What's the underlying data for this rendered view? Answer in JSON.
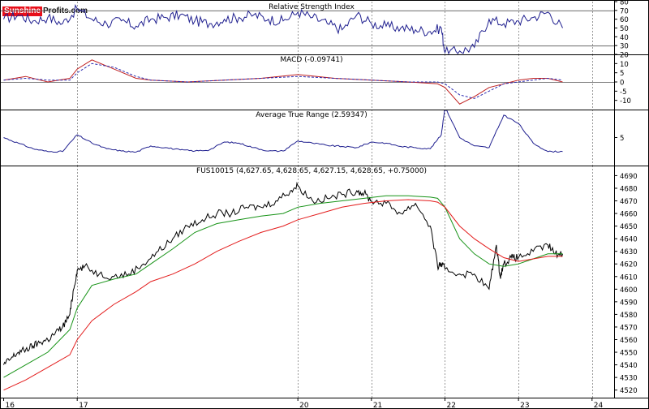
{
  "brand": {
    "part1": "Sunshine",
    "part2": "Profits.com"
  },
  "colors": {
    "price": "#000000",
    "indicator": "#1f1f8f",
    "ma_fast": "#179317",
    "ma_slow": "#e31c1c",
    "grid": "#9a9a9a",
    "axis": "#000000"
  },
  "chart_data": [
    {
      "type": "line",
      "title": "Relative Strength Index",
      "ylim": [
        20,
        80
      ],
      "yticks": [
        "80",
        "70",
        "60",
        "50",
        "40",
        "30",
        "20"
      ],
      "reference_lines": [
        70,
        30
      ],
      "series": [
        {
          "x": [
            16.0,
            16.2,
            16.4,
            16.6,
            16.8,
            17.0,
            17.2,
            17.4,
            17.6,
            17.8,
            18.0,
            18.2,
            18.4,
            18.6,
            18.8,
            19.0,
            19.2,
            19.4,
            19.6,
            19.8,
            20.0,
            20.2,
            20.4,
            20.6,
            20.8,
            21.0,
            21.2,
            21.4,
            21.6,
            21.8,
            21.95,
            22.0,
            22.2,
            22.4,
            22.6,
            22.8,
            23.0,
            23.2,
            23.4,
            23.6
          ],
          "values": [
            60,
            65,
            58,
            62,
            55,
            72,
            60,
            55,
            58,
            52,
            60,
            62,
            65,
            58,
            55,
            60,
            62,
            65,
            60,
            58,
            68,
            62,
            55,
            48,
            65,
            55,
            52,
            50,
            48,
            46,
            50,
            22,
            24,
            28,
            60,
            55,
            58,
            62,
            68,
            50
          ]
        }
      ]
    },
    {
      "type": "line",
      "title": "MACD (-0.09741)",
      "ylim": [
        -15,
        15
      ],
      "yticks": [
        "10",
        "5",
        "0",
        "-5",
        "-10"
      ],
      "series": [
        {
          "style": "solid",
          "x": [
            16.0,
            16.3,
            16.6,
            16.9,
            17.0,
            17.2,
            17.5,
            17.8,
            18.0,
            18.5,
            19.0,
            19.5,
            20.0,
            20.5,
            21.0,
            21.5,
            21.9,
            22.0,
            22.2,
            22.4,
            22.6,
            22.8,
            23.0,
            23.2,
            23.4,
            23.6
          ],
          "values": [
            1,
            3,
            0,
            2,
            7,
            12,
            7,
            2,
            1,
            0,
            1,
            2,
            4,
            2,
            1,
            0,
            -1,
            -3,
            -12,
            -8,
            -3,
            -1,
            1,
            2,
            2,
            0
          ]
        },
        {
          "style": "dashed",
          "x": [
            16.0,
            16.3,
            16.6,
            16.9,
            17.0,
            17.2,
            17.5,
            17.8,
            18.0,
            18.5,
            19.0,
            19.5,
            20.0,
            20.5,
            21.0,
            21.5,
            21.9,
            22.0,
            22.2,
            22.4,
            22.6,
            22.8,
            23.0,
            23.2,
            23.4,
            23.6
          ],
          "values": [
            1,
            2,
            1,
            1,
            5,
            10,
            8,
            3,
            1,
            0,
            1,
            2,
            3,
            2,
            1,
            0,
            0,
            -1,
            -7,
            -9,
            -5,
            -1,
            0,
            1,
            2,
            1
          ]
        }
      ]
    },
    {
      "type": "line",
      "title": "Average True Range (2.59347)",
      "ylim": [
        0,
        10
      ],
      "yticks": [
        "5"
      ],
      "series": [
        {
          "x": [
            16.0,
            16.2,
            16.4,
            16.6,
            16.8,
            17.0,
            17.2,
            17.4,
            17.6,
            17.8,
            18.0,
            18.2,
            18.4,
            18.6,
            18.8,
            19.0,
            19.2,
            19.4,
            19.6,
            19.8,
            20.0,
            20.2,
            20.4,
            20.6,
            20.8,
            21.0,
            21.2,
            21.4,
            21.6,
            21.8,
            21.95,
            22.0,
            22.2,
            22.4,
            22.6,
            22.8,
            23.0,
            23.2,
            23.4,
            23.6
          ],
          "values": [
            5,
            4,
            3,
            2.5,
            2.5,
            5.5,
            4,
            3,
            2.6,
            2.4,
            3.5,
            3.2,
            2.8,
            2.6,
            2.8,
            4.2,
            4.0,
            3.2,
            2.6,
            2.6,
            4.4,
            4.0,
            3.6,
            3.4,
            3.2,
            4.2,
            4.0,
            3.4,
            3.2,
            3.0,
            5.5,
            10.5,
            5.0,
            3.5,
            3.2,
            9.0,
            7.5,
            4.0,
            2.5,
            2.5
          ]
        }
      ]
    },
    {
      "type": "line",
      "title": "FUS10015 (4,627.65, 4,628.65, 4,627.15, 4,628.65, +0.75000)",
      "ylim": [
        4514,
        4698
      ],
      "yticks": [
        "4690",
        "4680",
        "4670",
        "4660",
        "4650",
        "4640",
        "4630",
        "4620",
        "4610",
        "4600",
        "4590",
        "4580",
        "4570",
        "4560",
        "4550",
        "4540",
        "4530",
        "4520"
      ],
      "xticks": [
        "16",
        "17",
        "20",
        "21",
        "22",
        "23",
        "24"
      ],
      "series": [
        {
          "style": "price",
          "x": [
            16.0,
            16.1,
            16.2,
            16.3,
            16.4,
            16.5,
            16.6,
            16.7,
            16.8,
            16.9,
            16.95,
            17.0,
            17.1,
            17.3,
            17.5,
            17.7,
            17.9,
            18.1,
            18.3,
            18.5,
            18.7,
            18.9,
            19.1,
            19.3,
            19.5,
            19.7,
            19.9,
            20.0,
            20.2,
            20.4,
            20.6,
            20.8,
            20.9,
            21.0,
            21.2,
            21.4,
            21.6,
            21.8,
            21.9,
            21.95,
            22.0,
            22.2,
            22.4,
            22.6,
            22.7,
            22.75,
            22.8,
            22.9,
            23.0,
            23.2,
            23.4,
            23.5,
            23.6
          ],
          "values": [
            4540,
            4545,
            4550,
            4552,
            4555,
            4558,
            4560,
            4565,
            4570,
            4580,
            4600,
            4615,
            4618,
            4612,
            4610,
            4612,
            4620,
            4630,
            4640,
            4650,
            4655,
            4660,
            4660,
            4665,
            4665,
            4670,
            4678,
            4682,
            4670,
            4672,
            4675,
            4678,
            4676,
            4670,
            4668,
            4660,
            4668,
            4650,
            4618,
            4620,
            4616,
            4612,
            4612,
            4600,
            4635,
            4610,
            4620,
            4625,
            4625,
            4630,
            4635,
            4628,
            4628
          ]
        },
        {
          "style": "ma_fast",
          "x": [
            16.0,
            16.3,
            16.6,
            16.9,
            17.0,
            17.2,
            17.5,
            17.8,
            18.0,
            18.3,
            18.6,
            18.9,
            19.2,
            19.5,
            19.8,
            20.0,
            20.3,
            20.6,
            20.9,
            21.2,
            21.5,
            21.8,
            21.9,
            22.0,
            22.2,
            22.4,
            22.6,
            22.8,
            23.0,
            23.2,
            23.4,
            23.6
          ],
          "values": [
            4530,
            4540,
            4550,
            4568,
            4585,
            4603,
            4608,
            4612,
            4620,
            4632,
            4645,
            4652,
            4655,
            4658,
            4660,
            4665,
            4668,
            4670,
            4672,
            4674,
            4674,
            4673,
            4672,
            4665,
            4640,
            4628,
            4620,
            4618,
            4620,
            4624,
            4628,
            4628
          ]
        },
        {
          "style": "ma_slow",
          "x": [
            16.0,
            16.3,
            16.6,
            16.9,
            17.0,
            17.2,
            17.5,
            17.8,
            18.0,
            18.3,
            18.6,
            18.9,
            19.2,
            19.5,
            19.8,
            20.0,
            20.3,
            20.6,
            20.9,
            21.2,
            21.5,
            21.8,
            21.9,
            22.0,
            22.2,
            22.4,
            22.6,
            22.8,
            23.0,
            23.2,
            23.4,
            23.6
          ],
          "values": [
            4520,
            4528,
            4538,
            4548,
            4560,
            4575,
            4588,
            4598,
            4606,
            4612,
            4620,
            4630,
            4638,
            4645,
            4650,
            4655,
            4660,
            4665,
            4668,
            4670,
            4671,
            4670,
            4669,
            4665,
            4650,
            4640,
            4632,
            4625,
            4622,
            4624,
            4626,
            4626
          ]
        }
      ]
    }
  ]
}
